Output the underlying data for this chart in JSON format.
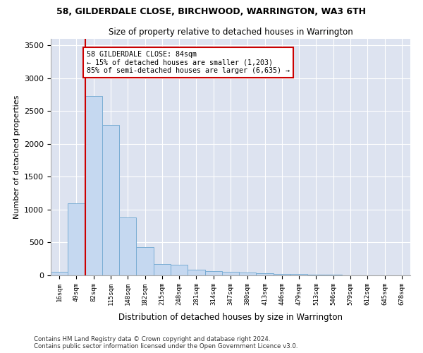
{
  "title_line1": "58, GILDERDALE CLOSE, BIRCHWOOD, WARRINGTON, WA3 6TH",
  "title_line2": "Size of property relative to detached houses in Warrington",
  "xlabel": "Distribution of detached houses by size in Warrington",
  "ylabel": "Number of detached properties",
  "categories": [
    "16sqm",
    "49sqm",
    "82sqm",
    "115sqm",
    "148sqm",
    "182sqm",
    "215sqm",
    "248sqm",
    "281sqm",
    "314sqm",
    "347sqm",
    "380sqm",
    "413sqm",
    "446sqm",
    "479sqm",
    "513sqm",
    "546sqm",
    "579sqm",
    "612sqm",
    "645sqm",
    "678sqm"
  ],
  "values": [
    55,
    1100,
    2730,
    2290,
    880,
    430,
    170,
    165,
    90,
    60,
    50,
    45,
    35,
    25,
    20,
    10,
    8,
    5,
    3,
    2,
    1
  ],
  "bar_color": "#c5d8f0",
  "bar_edgecolor": "#7aadd4",
  "vline_color": "#cc0000",
  "annotation_text": "58 GILDERDALE CLOSE: 84sqm\n← 15% of detached houses are smaller (1,203)\n85% of semi-detached houses are larger (6,635) →",
  "annotation_box_color": "#ffffff",
  "annotation_box_edgecolor": "#cc0000",
  "ylim": [
    0,
    3600
  ],
  "yticks": [
    0,
    500,
    1000,
    1500,
    2000,
    2500,
    3000,
    3500
  ],
  "background_color": "#dde3f0",
  "figure_color": "#ffffff",
  "grid_color": "#ffffff",
  "footer_line1": "Contains HM Land Registry data © Crown copyright and database right 2024.",
  "footer_line2": "Contains public sector information licensed under the Open Government Licence v3.0."
}
